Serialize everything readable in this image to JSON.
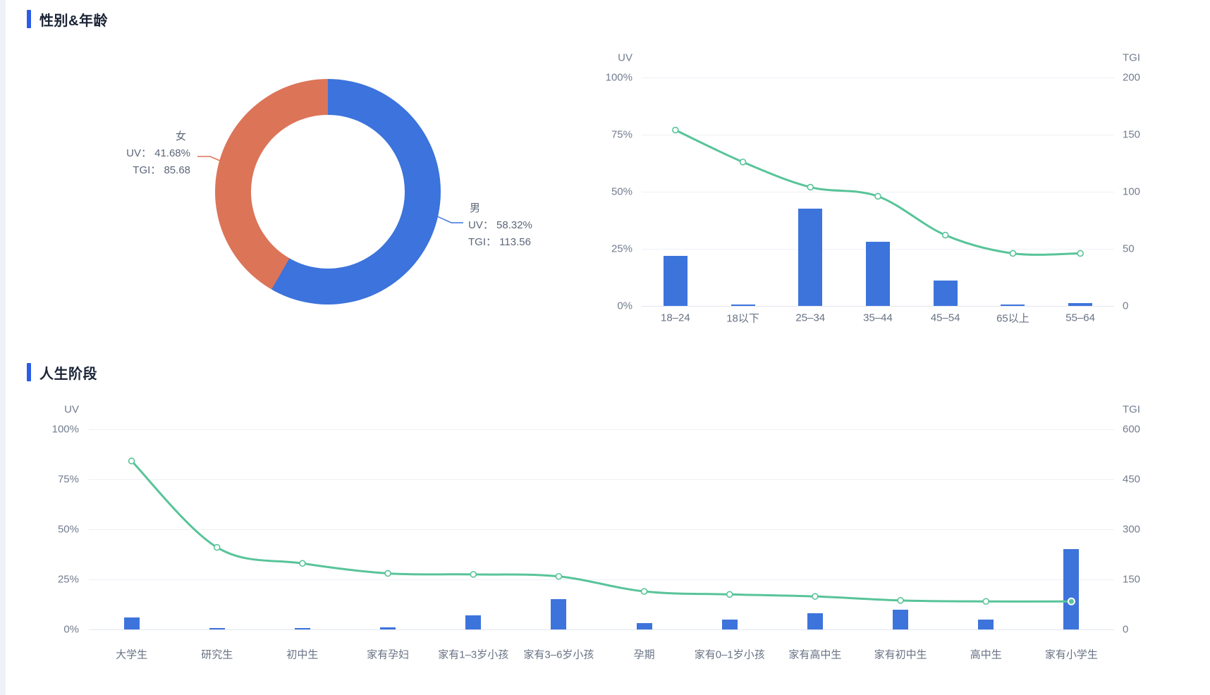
{
  "page": {
    "background": "#ffffff",
    "gutter_color": "#eef1f7"
  },
  "colors": {
    "accent": "#2b5ce6",
    "bar": "#3d74dc",
    "pie_male": "#3c73dc",
    "pie_female": "#dc7458",
    "line": "#58c499",
    "grid": "#eef0f6",
    "axis_line": "#e2e6ee",
    "tick_text": "#737d8f",
    "title_text": "#1b2436",
    "pie_label_text": "#5d6779"
  },
  "sections": [
    {
      "title": "性别&年龄"
    },
    {
      "title": "人生阶段"
    }
  ],
  "donut_labels": {
    "female": [
      "女",
      "UV： 41.68%",
      "TGI： 85.68"
    ],
    "male": [
      "男",
      "UV： 58.32%",
      "TGI： 113.56"
    ]
  },
  "chart_data": [
    {
      "type": "pie",
      "section": "性别&年龄",
      "donut": true,
      "start_angle": "top",
      "clockwise": true,
      "slices": [
        {
          "label": "男",
          "uv_pct": 58.32,
          "tgi": 113.56,
          "color": "#3c73dc"
        },
        {
          "label": "女",
          "uv_pct": 41.68,
          "tgi": 85.68,
          "color": "#dc7458"
        }
      ]
    },
    {
      "type": "bar+line",
      "section": "性别&年龄",
      "categories": [
        "18–24",
        "18以下",
        "25–34",
        "35–44",
        "45–54",
        "65以上",
        "55–64"
      ],
      "series": [
        {
          "name": "UV",
          "type": "bar",
          "axis": "left",
          "unit": "%",
          "values": [
            22,
            0.6,
            42.5,
            28,
            11,
            0.6,
            1.2
          ]
        },
        {
          "name": "TGI",
          "type": "line",
          "axis": "right",
          "values": [
            154,
            126,
            104,
            96,
            62,
            46,
            46
          ]
        }
      ],
      "left_axis": {
        "label": "UV",
        "min": 0,
        "max": 100,
        "ticks": [
          "100%",
          "75%",
          "50%",
          "25%",
          "0%"
        ]
      },
      "right_axis": {
        "label": "TGI",
        "min": 0,
        "max": 200,
        "ticks": [
          "200",
          "150",
          "100",
          "50",
          "0"
        ]
      },
      "grid": true,
      "legend": false,
      "last_point_emphasis": false
    },
    {
      "type": "bar+line",
      "section": "人生阶段",
      "categories": [
        "大学生",
        "研究生",
        "初中生",
        "家有孕妇",
        "家有1–3岁小孩",
        "家有3–6岁小孩",
        "孕期",
        "家有0–1岁小孩",
        "家有高中生",
        "家有初中生",
        "高中生",
        "家有小学生"
      ],
      "series": [
        {
          "name": "UV",
          "type": "bar",
          "axis": "left",
          "unit": "%",
          "values": [
            6,
            0.4,
            0.8,
            1.1,
            7,
            15,
            3,
            5,
            8,
            10,
            5,
            40
          ]
        },
        {
          "name": "TGI",
          "type": "line",
          "axis": "right",
          "values": [
            505,
            246,
            198,
            168,
            165,
            159,
            114,
            105,
            99,
            87,
            84,
            84
          ]
        }
      ],
      "left_axis": {
        "label": "UV",
        "min": 0,
        "max": 100,
        "ticks": [
          "100%",
          "75%",
          "50%",
          "25%",
          "0%"
        ]
      },
      "right_axis": {
        "label": "TGI",
        "min": 0,
        "max": 600,
        "ticks": [
          "600",
          "450",
          "300",
          "150",
          "0"
        ]
      },
      "grid": true,
      "legend": false,
      "last_point_emphasis": true
    }
  ]
}
